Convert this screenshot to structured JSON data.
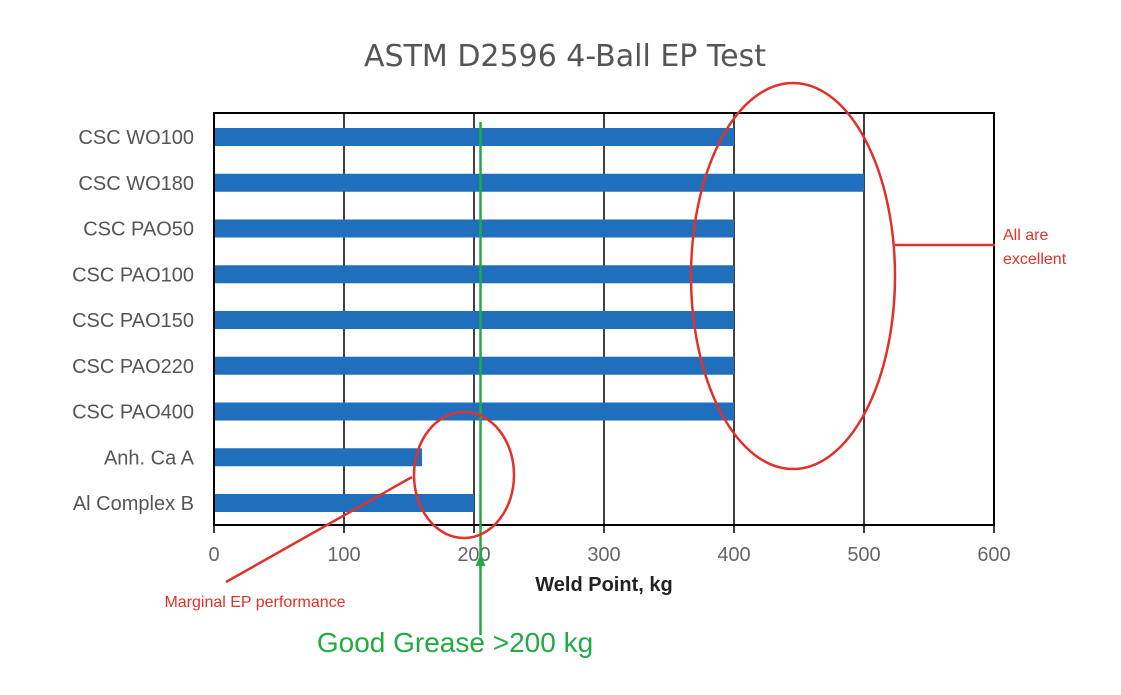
{
  "chart_data": {
    "type": "bar",
    "orientation": "horizontal",
    "title": "ASTM D2596 4-Ball EP Test",
    "xlabel": "Weld Point, kg",
    "ylabel": "",
    "xlim": [
      0,
      600
    ],
    "xticks": [
      0,
      100,
      200,
      300,
      400,
      500,
      600
    ],
    "grid": true,
    "categories": [
      "CSC WO100",
      "CSC WO180",
      "CSC PAO50",
      "CSC PAO100",
      "CSC PAO150",
      "CSC PAO220",
      "CSC PAO400",
      "Anh. Ca A",
      "Al Complex B"
    ],
    "values": [
      400,
      500,
      400,
      400,
      400,
      400,
      400,
      160,
      200
    ],
    "threshold": 205,
    "annotations": {
      "excellent": "All are excellent",
      "marginal": "Marginal EP performance",
      "good": "Good Grease >200 kg"
    },
    "colors": {
      "bar": "#1f6fbd",
      "grid": "#000000",
      "annotation_red": "#e0312a",
      "threshold_green": "#22aa44",
      "title": "#555555"
    }
  }
}
